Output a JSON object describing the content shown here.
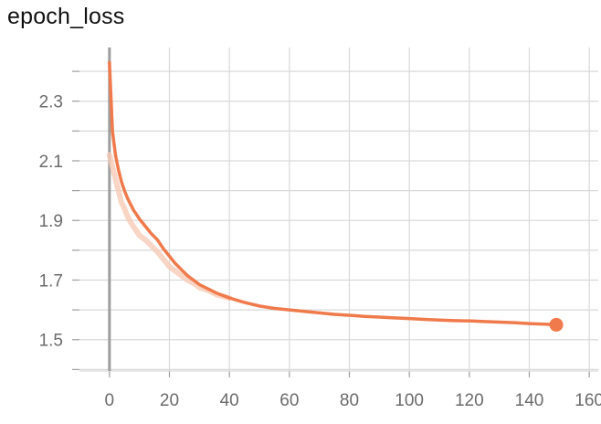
{
  "chart_data": {
    "type": "line",
    "title": "epoch_loss",
    "xlabel": "",
    "ylabel": "",
    "xlim": [
      -10,
      163
    ],
    "ylim": [
      1.395,
      2.48
    ],
    "x_ticks": [
      0,
      20,
      40,
      60,
      80,
      100,
      120,
      140,
      160
    ],
    "x_tick_labels": [
      "0",
      "20",
      "40",
      "60",
      "80",
      "100",
      "120",
      "140",
      "160"
    ],
    "y_ticks": [
      1.5,
      1.7,
      1.9,
      2.1,
      2.3
    ],
    "y_tick_labels": [
      "1.5",
      "1.7",
      "1.9",
      "2.1",
      "2.3"
    ],
    "grid": true,
    "colors": {
      "series": "#f07a4b",
      "raw_series": "#f7cbb7",
      "grid": "#d9d9d9",
      "axis": "#9e9e9e",
      "tick_text": "#6b6b6b"
    },
    "series": [
      {
        "x": [
          0,
          1,
          2,
          3,
          4,
          5,
          6,
          7,
          8,
          9,
          10,
          12,
          14,
          16,
          18,
          20,
          22,
          24,
          26,
          28,
          30,
          33,
          36,
          40,
          45,
          50,
          55,
          60,
          65,
          70,
          75,
          80,
          85,
          90,
          95,
          100,
          105,
          110,
          115,
          120,
          125,
          130,
          135,
          140,
          145,
          149
        ],
        "y": [
          2.43,
          2.2,
          2.12,
          2.07,
          2.03,
          2.0,
          1.975,
          1.955,
          1.935,
          1.92,
          1.905,
          1.88,
          1.855,
          1.835,
          1.805,
          1.78,
          1.755,
          1.735,
          1.715,
          1.7,
          1.685,
          1.67,
          1.655,
          1.64,
          1.625,
          1.613,
          1.605,
          1.6,
          1.595,
          1.59,
          1.585,
          1.582,
          1.578,
          1.576,
          1.573,
          1.571,
          1.568,
          1.566,
          1.564,
          1.563,
          1.561,
          1.559,
          1.557,
          1.554,
          1.552,
          1.55
        ]
      },
      {
        "x": [
          0,
          1,
          2,
          3,
          4,
          5,
          6,
          7,
          8,
          9,
          10,
          12,
          14,
          16,
          18,
          20,
          22,
          24,
          26,
          28,
          30,
          33,
          36,
          40
        ],
        "y": [
          2.12,
          2.08,
          2.04,
          2.0,
          1.96,
          1.94,
          1.915,
          1.895,
          1.88,
          1.865,
          1.85,
          1.835,
          1.815,
          1.795,
          1.77,
          1.745,
          1.73,
          1.715,
          1.7,
          1.69,
          1.675,
          1.665,
          1.65,
          1.64
        ]
      }
    ],
    "endpoint": {
      "x": 149,
      "y": 1.55
    }
  }
}
